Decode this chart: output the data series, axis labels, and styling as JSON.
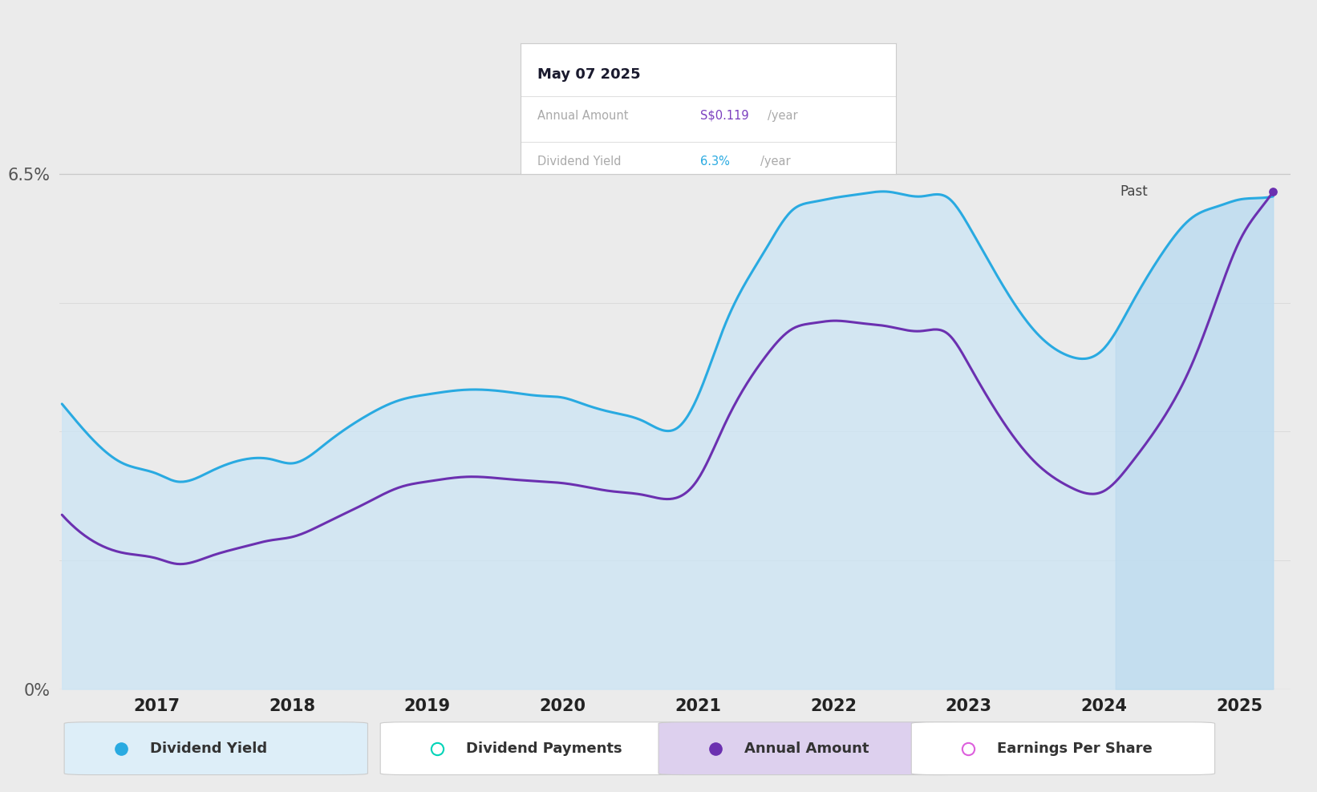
{
  "background_color": "#ebebeb",
  "plot_bg_color": "#ebebeb",
  "tooltip_date": "May 07 2025",
  "tooltip_annual_label": "Annual Amount",
  "tooltip_annual_value": "S$0.119",
  "tooltip_annual_suffix": "/year",
  "tooltip_annual_color": "#7b3fbf",
  "tooltip_yield_label": "Dividend Yield",
  "tooltip_yield_value": "6.3%",
  "tooltip_yield_suffix": "/year",
  "tooltip_yield_color": "#29aae1",
  "x_ticks": [
    2017,
    2018,
    2019,
    2020,
    2021,
    2022,
    2023,
    2024,
    2025
  ],
  "dividend_yield": {
    "x": [
      2016.3,
      2016.5,
      2016.75,
      2017.0,
      2017.15,
      2017.4,
      2017.65,
      2017.85,
      2018.0,
      2018.25,
      2018.55,
      2018.8,
      2019.0,
      2019.3,
      2019.6,
      2019.85,
      2020.0,
      2020.15,
      2020.35,
      2020.6,
      2020.85,
      2021.0,
      2021.2,
      2021.5,
      2021.7,
      2021.85,
      2022.0,
      2022.2,
      2022.4,
      2022.65,
      2022.85,
      2023.0,
      2023.2,
      2023.5,
      2023.75,
      2024.0,
      2024.2,
      2024.45,
      2024.65,
      2024.85,
      2025.0,
      2025.15,
      2025.25
    ],
    "y": [
      3.6,
      3.2,
      2.85,
      2.72,
      2.62,
      2.75,
      2.9,
      2.9,
      2.85,
      3.1,
      3.45,
      3.65,
      3.72,
      3.78,
      3.75,
      3.7,
      3.68,
      3.6,
      3.5,
      3.38,
      3.3,
      3.7,
      4.6,
      5.55,
      6.05,
      6.15,
      6.2,
      6.25,
      6.28,
      6.22,
      6.2,
      5.85,
      5.25,
      4.5,
      4.2,
      4.3,
      4.85,
      5.55,
      5.95,
      6.1,
      6.18,
      6.2,
      6.22
    ],
    "color": "#29aae1",
    "fill_color": "#cce5f5",
    "fill_alpha": 0.75,
    "line_width": 2.2
  },
  "annual_amount": {
    "x": [
      2016.3,
      2016.5,
      2016.75,
      2017.0,
      2017.15,
      2017.4,
      2017.65,
      2017.85,
      2018.0,
      2018.25,
      2018.55,
      2018.8,
      2019.0,
      2019.3,
      2019.6,
      2019.85,
      2020.0,
      2020.15,
      2020.35,
      2020.6,
      2020.85,
      2021.0,
      2021.2,
      2021.5,
      2021.7,
      2021.85,
      2022.0,
      2022.2,
      2022.4,
      2022.65,
      2022.85,
      2023.0,
      2023.2,
      2023.5,
      2023.75,
      2024.0,
      2024.2,
      2024.45,
      2024.65,
      2024.85,
      2025.0,
      2025.15,
      2025.25
    ],
    "y": [
      2.2,
      1.9,
      1.72,
      1.65,
      1.58,
      1.68,
      1.8,
      1.88,
      1.92,
      2.1,
      2.35,
      2.55,
      2.62,
      2.68,
      2.65,
      2.62,
      2.6,
      2.56,
      2.5,
      2.45,
      2.42,
      2.65,
      3.35,
      4.2,
      4.55,
      4.62,
      4.65,
      4.62,
      4.58,
      4.52,
      4.48,
      4.1,
      3.52,
      2.85,
      2.55,
      2.5,
      2.85,
      3.45,
      4.1,
      5.0,
      5.65,
      6.05,
      6.28
    ],
    "color": "#6b30b0",
    "line_width": 2.2
  },
  "past_shade_x_start": 2024.08,
  "past_shade_color": "#b8d8ee",
  "past_shade_alpha": 0.55,
  "ylim": [
    0,
    7.2
  ],
  "xlim": [
    2016.28,
    2025.38
  ],
  "ytick_positions": [
    0,
    6.5
  ],
  "ytick_labels": [
    "0%",
    "6.5%"
  ],
  "grid_lines": [
    0,
    6.5
  ],
  "faint_grid_lines": [
    1.625,
    3.25,
    4.875
  ],
  "legend": [
    {
      "label": "Dividend Yield",
      "color": "#29aae1",
      "marker": "circle_filled",
      "bg": "#ddeef8"
    },
    {
      "label": "Dividend Payments",
      "color": "#00d4b8",
      "marker": "circle_open",
      "bg": "#ffffff"
    },
    {
      "label": "Annual Amount",
      "color": "#6b30b0",
      "marker": "circle_filled",
      "bg": "#ddd0ee"
    },
    {
      "label": "Earnings Per Share",
      "color": "#dd60dd",
      "marker": "circle_open",
      "bg": "#ffffff"
    }
  ]
}
